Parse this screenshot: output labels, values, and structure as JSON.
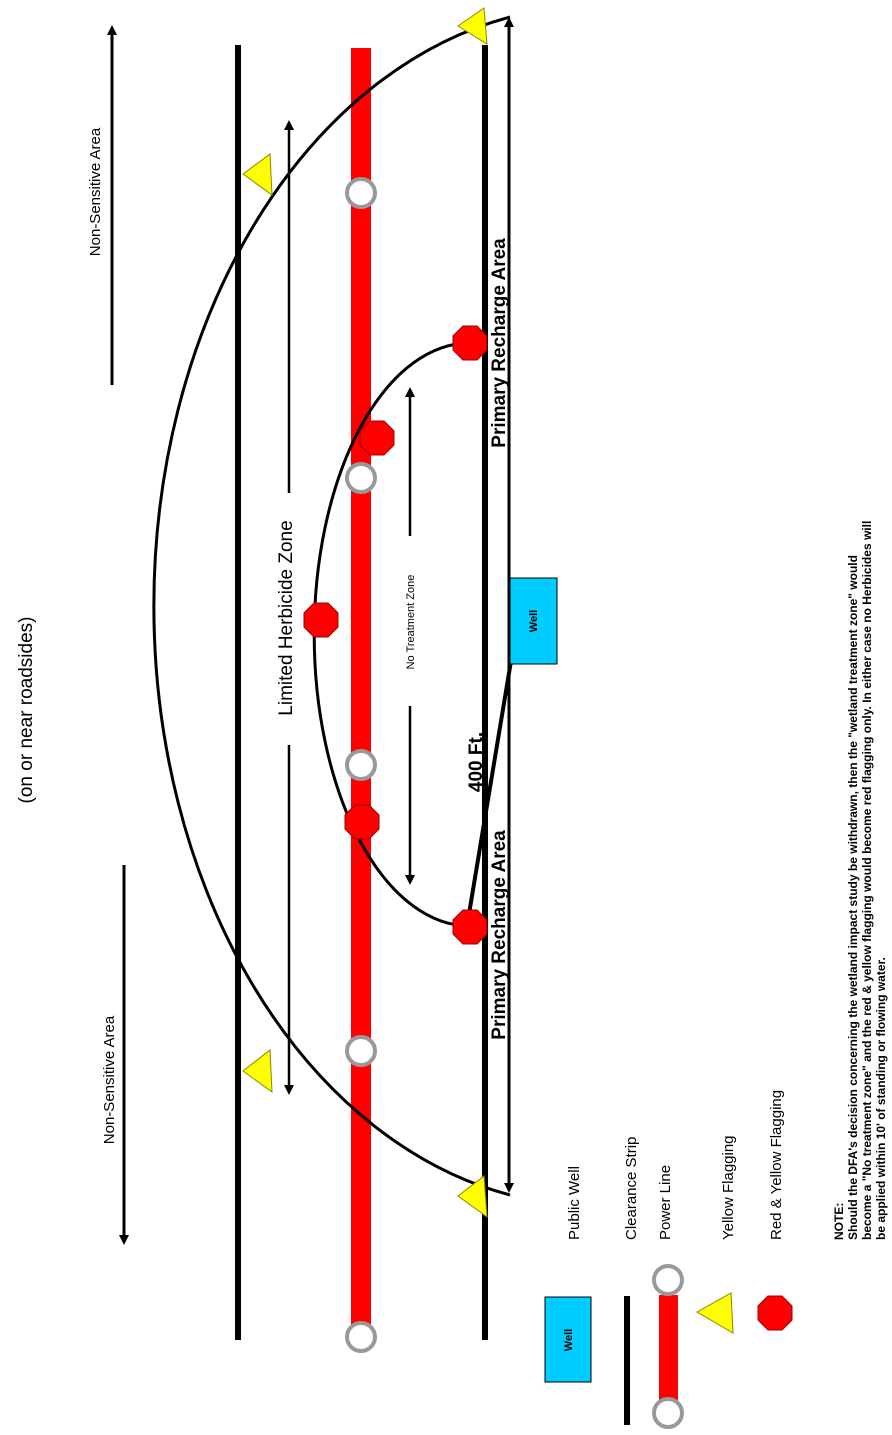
{
  "diagram": {
    "subtitle": "(on or near roadsides)",
    "labels": {
      "non_sensitive_top": "Non-Sensitive Area",
      "non_sensitive_bottom": "Non-Sensitive Area",
      "limited_herbicide_zone": "Limited Herbicide Zone",
      "no_treatment_zone": "No Treatment Zone",
      "primary_recharge_top": "Primary Recharge Area",
      "primary_recharge_bottom": "Primary Recharge Area",
      "distance": "400 Ft.",
      "well": "Well"
    }
  },
  "legend": {
    "public_well": "Public Well",
    "clearance_strip": "Clearance Strip",
    "power_line": "Power Line",
    "yellow_flagging": "Yellow Flagging",
    "red_yellow_flagging": "Red & Yellow Flagging",
    "well_box": "Well"
  },
  "note": {
    "heading": "NOTE:",
    "line1": "Should the DFA's decision concerning the wetland impact study be withdrawn, then the \"wetland treatment zone\" would",
    "line2": "become a \"No treatment zone\" and the red & yellow flagging would become red flagging only.  In either case no Herbicides will",
    "line3": "be applied within 10' of standing or flowing water."
  },
  "colors": {
    "red": "#ff0000",
    "yellow": "#ffff00",
    "cyan": "#00ccff",
    "gray": "#999999"
  }
}
